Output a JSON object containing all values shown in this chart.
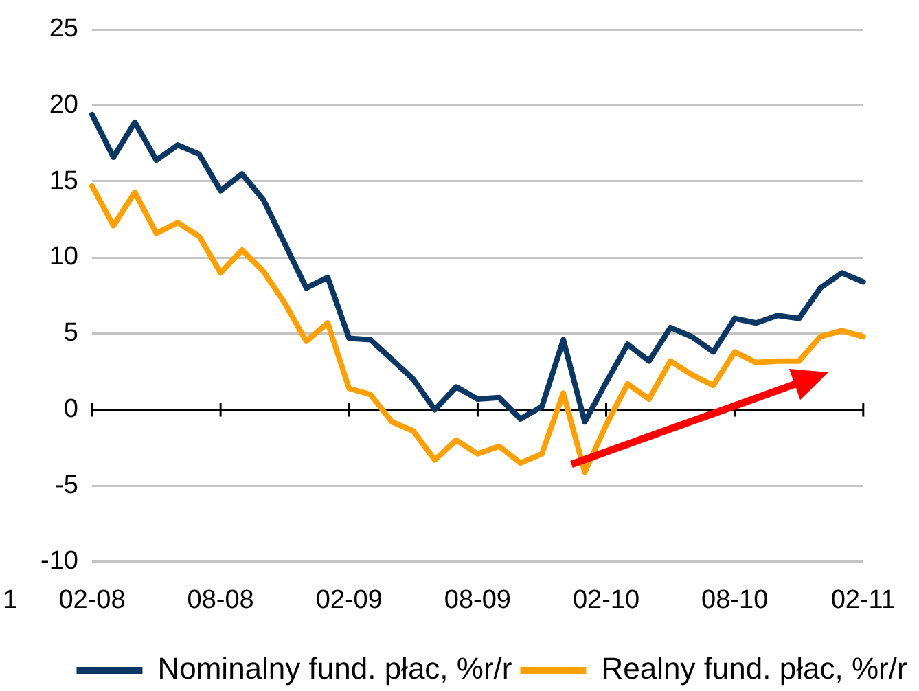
{
  "chart_data": {
    "type": "line",
    "categories": [
      "02-08",
      null,
      null,
      null,
      null,
      null,
      "08-08",
      null,
      null,
      null,
      null,
      null,
      "02-09",
      null,
      null,
      null,
      null,
      null,
      "08-09",
      null,
      null,
      null,
      null,
      null,
      "02-10",
      null,
      null,
      null,
      null,
      null,
      "08-10",
      null,
      null,
      null,
      null,
      null,
      "02-11"
    ],
    "series": [
      {
        "name": "Nominalny fund. płac, %r/r",
        "color": "#0a3764",
        "values": [
          19.4,
          16.6,
          18.9,
          16.4,
          17.4,
          16.8,
          14.4,
          15.5,
          13.8,
          10.9,
          8.0,
          8.7,
          4.7,
          4.6,
          3.3,
          2.0,
          0.0,
          1.5,
          0.7,
          0.8,
          -0.6,
          0.2,
          4.6,
          -0.8,
          1.8,
          4.3,
          3.2,
          5.4,
          4.8,
          3.8,
          6.0,
          5.7,
          6.2,
          6.0,
          8.0,
          9.0,
          8.4
        ]
      },
      {
        "name": "Realny fund. płac, %r/r",
        "color": "#ffa000",
        "values": [
          14.7,
          12.1,
          14.3,
          11.6,
          12.3,
          11.4,
          9.0,
          10.5,
          9.1,
          7.0,
          4.5,
          5.7,
          1.4,
          1.0,
          -0.8,
          -1.4,
          -3.3,
          -2.0,
          -2.9,
          -2.4,
          -3.5,
          -2.9,
          1.1,
          -4.1,
          -1.0,
          1.7,
          0.7,
          3.2,
          2.3,
          1.6,
          3.8,
          3.1,
          3.2,
          3.2,
          4.8,
          5.2,
          4.8
        ]
      }
    ],
    "ylim": [
      -10,
      25
    ],
    "yticks": [
      -10,
      -5,
      0,
      5,
      10,
      15,
      20,
      25
    ],
    "ref_lines": [
      {
        "axis": "y",
        "value": 0,
        "color": "#000000"
      }
    ],
    "annotations": [
      "1"
    ],
    "grid": "y",
    "legend": "bottom",
    "marker": "none",
    "line_style": "solid"
  }
}
